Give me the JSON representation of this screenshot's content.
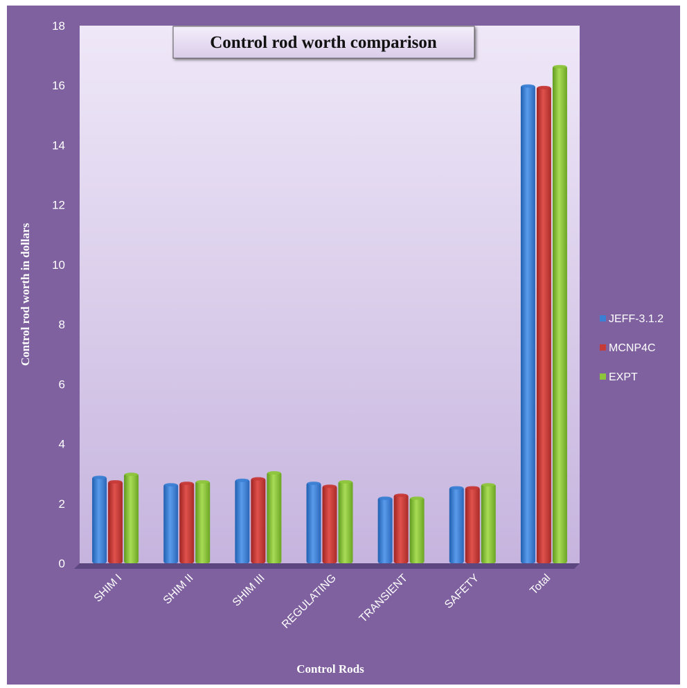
{
  "chart_data": {
    "type": "bar",
    "title": "Control rod worth comparison",
    "xlabel": "Control Rods",
    "ylabel": "Control  rod  worth in dollars",
    "ylim": [
      0,
      18
    ],
    "yticks": [
      0,
      2,
      4,
      6,
      8,
      10,
      12,
      14,
      16,
      18
    ],
    "grid": false,
    "legend_position": "right",
    "categories": [
      "SHIM I",
      "SHIM II",
      "SHIM III",
      "REGULATING",
      "TRANSIENT",
      "SAFETY",
      "Total"
    ],
    "series": [
      {
        "name": "JEFF-3.1.2",
        "color": "#3b7fd4",
        "values": [
          2.9,
          2.65,
          2.8,
          2.7,
          2.2,
          2.55,
          16.0
        ]
      },
      {
        "name": "MCNP4C",
        "color": "#c63a37",
        "values": [
          2.75,
          2.7,
          2.85,
          2.6,
          2.3,
          2.55,
          15.95
        ]
      },
      {
        "name": "EXPT",
        "color": "#8dc43c",
        "values": [
          3.0,
          2.75,
          3.05,
          2.75,
          2.2,
          2.65,
          16.65
        ]
      }
    ]
  },
  "colors": {
    "background": "#7f61a0",
    "plot_top": "#ede6f6",
    "plot_bottom": "#c8b8e0"
  }
}
